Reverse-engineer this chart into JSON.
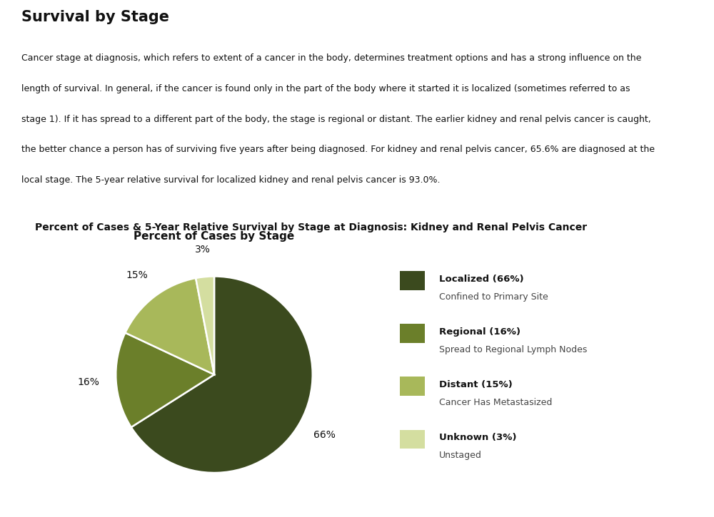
{
  "title_main": "Survival by Stage",
  "para_lines": [
    "Cancer stage at diagnosis, which refers to extent of a cancer in the body, determines treatment options and has a strong influence on the",
    "length of survival. In general, if the cancer is found only in the part of the body where it started it is localized (sometimes referred to as",
    "stage 1). If it has spread to a different part of the body, the stage is regional or distant. The earlier kidney and renal pelvis cancer is caught,",
    "the better chance a person has of surviving five years after being diagnosed. For kidney and renal pelvis cancer, 65.6% are diagnosed at the",
    "local stage. The 5-year relative survival for localized kidney and renal pelvis cancer is 93.0%."
  ],
  "box_title": "Percent of Cases & 5-Year Relative Survival by Stage at Diagnosis: Kidney and Renal Pelvis Cancer",
  "chart_title": "Percent of Cases by Stage",
  "slices": [
    66,
    16,
    15,
    3
  ],
  "labels": [
    "66%",
    "16%",
    "15%",
    "3%"
  ],
  "colors": [
    "#3b4a1e",
    "#6b7f2a",
    "#a8b85a",
    "#d4dea0"
  ],
  "legend_titles": [
    "Localized (66%)",
    "Regional (16%)",
    "Distant (15%)",
    "Unknown (3%)"
  ],
  "legend_subtitles": [
    "Confined to Primary Site",
    "Spread to Regional Lymph Nodes",
    "Cancer Has Metastasized",
    "Unstaged"
  ],
  "background_color": "#ffffff",
  "box_bg_color": "#e0e0e0",
  "inner_bg_color": "#f7f7f7",
  "startangle": 90
}
